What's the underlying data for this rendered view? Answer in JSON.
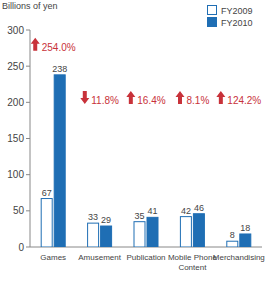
{
  "chart_data": {
    "type": "bar",
    "ylabel": "Billions of yen",
    "categories": [
      "Games",
      "Amusement",
      "Publication",
      "Mobile Phone Content",
      "Merchandising"
    ],
    "series": [
      {
        "name": "FY2009",
        "color": "#ffffff",
        "values": [
          67,
          33,
          35,
          42,
          8
        ]
      },
      {
        "name": "FY2010",
        "color": "#1f6eb4",
        "values": [
          238,
          29,
          41,
          46,
          18
        ]
      }
    ],
    "ylim": [
      0,
      300
    ],
    "yticks": [
      0,
      50,
      100,
      150,
      200,
      250,
      300
    ],
    "data_labels": true,
    "legend": "top-right",
    "annotations": [
      "254.0%",
      "11.8%",
      "16.4%",
      "8.1%",
      "124.2%"
    ]
  }
}
